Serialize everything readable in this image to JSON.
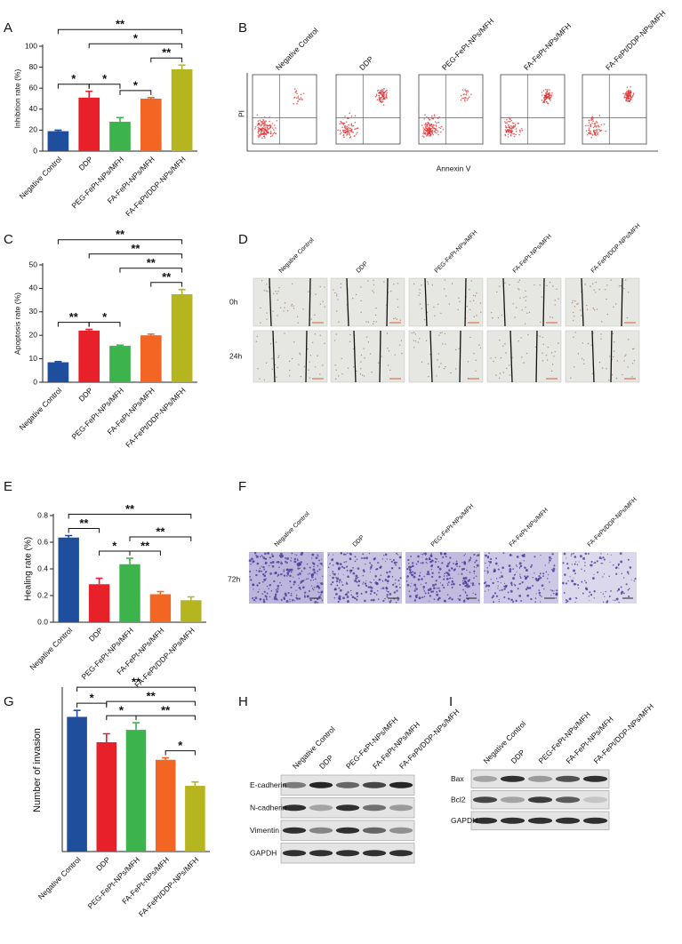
{
  "chart_data": [
    {
      "panel": "A",
      "type": "bar",
      "ylabel": "Inhibition rate (%)",
      "categories": [
        "Negative Control",
        "DDP",
        "PEG-FePt-NPs/MFH",
        "FA-FePt-NPs/MFH",
        "FA-FePt/DDP-NPs/MFH"
      ],
      "values": [
        19,
        51,
        28,
        50,
        78
      ],
      "errors": [
        1,
        6,
        4,
        1,
        4
      ],
      "colors": [
        "#1f4e9c",
        "#e8202a",
        "#3cb44b",
        "#f26522",
        "#b5b51f"
      ],
      "ylim": [
        0,
        100
      ],
      "yticks": [
        0,
        20,
        40,
        60,
        80,
        100
      ],
      "significance": [
        {
          "label": "**",
          "bars": [
            0,
            4
          ]
        },
        {
          "label": "*",
          "bars": [
            1,
            4
          ]
        },
        {
          "label": "*",
          "bars": [
            0,
            1
          ]
        },
        {
          "label": "*",
          "bars": [
            1,
            2
          ]
        },
        {
          "label": "*",
          "bars": [
            2,
            3
          ]
        },
        {
          "label": "**",
          "bars": [
            3,
            4
          ]
        }
      ]
    },
    {
      "panel": "C",
      "type": "bar",
      "ylabel": "Apoptosis rate (%)",
      "categories": [
        "Negative Control",
        "DDP",
        "PEG-FePt-NPs/MFH",
        "FA-FePt-NPs/MFH",
        "FA-FePt/DDP-NPs/MFH"
      ],
      "values": [
        8.5,
        22,
        15.5,
        20,
        37.5
      ],
      "errors": [
        0.3,
        0.5,
        0.3,
        0.5,
        2
      ],
      "colors": [
        "#1f4e9c",
        "#e8202a",
        "#3cb44b",
        "#f26522",
        "#b5b51f"
      ],
      "ylim": [
        0,
        50
      ],
      "yticks": [
        0,
        10,
        20,
        30,
        40,
        50
      ],
      "significance": [
        {
          "label": "**",
          "bars": [
            0,
            4
          ]
        },
        {
          "label": "**",
          "bars": [
            1,
            4
          ]
        },
        {
          "label": "**",
          "bars": [
            2,
            4
          ]
        },
        {
          "label": "**",
          "bars": [
            3,
            4
          ]
        },
        {
          "label": "**",
          "bars": [
            0,
            1
          ]
        },
        {
          "label": "*",
          "bars": [
            1,
            2
          ]
        }
      ]
    },
    {
      "panel": "E",
      "type": "bar",
      "ylabel": "Healing rate (%)",
      "categories": [
        "Negative Control",
        "DDP",
        "PEG-FePt-NPs/MFH",
        "FA-FePt-NPs/MFH",
        "FA-FePt/DDP-NPs/MFH"
      ],
      "values": [
        0.635,
        0.285,
        0.435,
        0.21,
        0.165
      ],
      "errors": [
        0.015,
        0.045,
        0.045,
        0.02,
        0.025
      ],
      "colors": [
        "#1f4e9c",
        "#e8202a",
        "#3cb44b",
        "#f26522",
        "#b5b51f"
      ],
      "ylim": [
        0,
        0.8
      ],
      "yticks": [
        {
          "value": 0,
          "label": "0.0"
        },
        0.2,
        0.4,
        0.6,
        0.8
      ],
      "significance": [
        {
          "label": "**",
          "bars": [
            0,
            4
          ]
        },
        {
          "label": "**",
          "bars": [
            0,
            1
          ]
        },
        {
          "label": "*",
          "bars": [
            1,
            2
          ]
        },
        {
          "label": "**",
          "bars": [
            2,
            4
          ]
        },
        {
          "label": "**",
          "bars": [
            2,
            3
          ]
        }
      ]
    },
    {
      "panel": "G",
      "type": "bar",
      "ylabel": "Number of invasion",
      "categories": [
        "Negative Control",
        "DDP",
        "PEG-FePt-NPs/MFH",
        "FA-FePt-NPs/MFH",
        "FA-FePt/DDP-NPs/MFH"
      ],
      "values": [
        207,
        168,
        187,
        141,
        101
      ],
      "errors": [
        10,
        13,
        11,
        3,
        6
      ],
      "colors": [
        "#1f4e9c",
        "#e8202a",
        "#3cb44b",
        "#f26522",
        "#b5b51f"
      ],
      "ylim": [
        0,
        250
      ],
      "significance": [
        {
          "label": "**",
          "bars": [
            0,
            4
          ]
        },
        {
          "label": "*",
          "bars": [
            0,
            1
          ]
        },
        {
          "label": "*",
          "bars": [
            1,
            2
          ]
        },
        {
          "label": "**",
          "bars": [
            1,
            4
          ]
        },
        {
          "label": "**",
          "bars": [
            2,
            4
          ]
        },
        {
          "label": "*",
          "bars": [
            3,
            4
          ]
        }
      ]
    }
  ],
  "flow": {
    "panel": "B",
    "samples": [
      "Negative Control",
      "DDP",
      "PEG-FePt-NPs/MFH",
      "FA-FePt-NPs/MFH",
      "FA-FePt/DDP-NPs/MFH"
    ],
    "xlabel": "Annexin V",
    "ylabel": "PI"
  },
  "wound": {
    "panel": "D",
    "samples": [
      "Negative Control",
      "DDP",
      "PEG-FePt-NPs/MFH",
      "FA-FePt-NPs/MFH",
      "FA-FePt/DDP-NPs/MFH"
    ],
    "rows": [
      "0h",
      "24h"
    ]
  },
  "transwell": {
    "panel": "F",
    "samples": [
      "Negative Control",
      "DDP",
      "PEG-FePt-NPs/MFH",
      "FA-FePt-NPs/MFH",
      "FA-FePt/DDP-NPs/MFH"
    ],
    "rows": [
      "72h"
    ]
  },
  "blot_h": {
    "panel": "H",
    "samples": [
      "Negative Control",
      "DDP",
      "PEG-FePt-NPs/MFH",
      "FA-FePt-NPs/MFH",
      "FA-FePt/DDP-NPs/MFH"
    ],
    "proteins": [
      "E-cadherin",
      "N-cadherin",
      "Vimentin",
      "GAPDH"
    ]
  },
  "blot_i": {
    "panel": "I",
    "samples": [
      "Negative Control",
      "DDP",
      "PEG-FePt-NPs/MFH",
      "FA-FePt-NPs/MFH",
      "FA-FePt/DDP-NPs/MFH"
    ],
    "proteins": [
      "Bax",
      "Bcl2",
      "GAPDH"
    ]
  }
}
